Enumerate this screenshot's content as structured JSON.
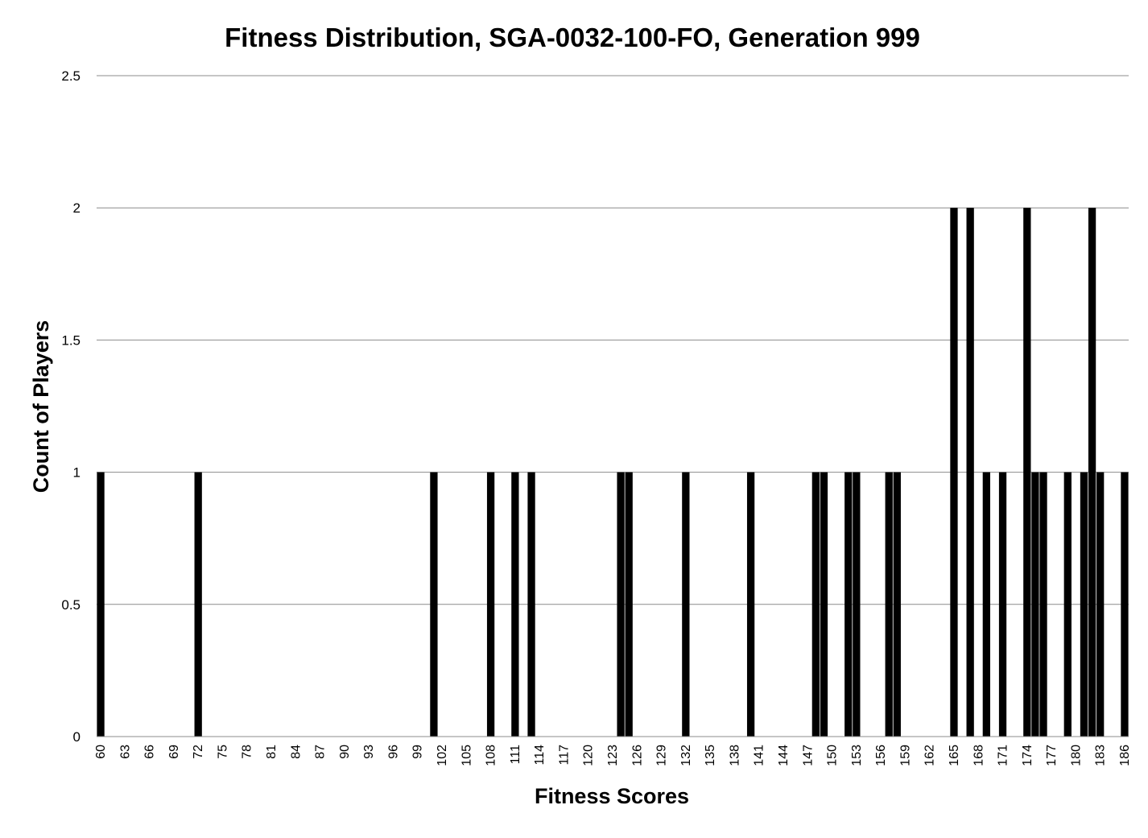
{
  "chart_data": {
    "type": "bar",
    "title": "Fitness Distribution, SGA-0032-100-FO, Generation 999",
    "xlabel": "Fitness Scores",
    "ylabel": "Count of Players",
    "ylim": [
      0,
      2.5
    ],
    "yticks": [
      "0",
      "0.5",
      "1",
      "1.5",
      "2",
      "2.5"
    ],
    "ytick_values": [
      0,
      0.5,
      1,
      1.5,
      2,
      2.5
    ],
    "grid": true,
    "legend": "none",
    "bar_color": "#000000",
    "categories": [
      60,
      61,
      62,
      63,
      64,
      65,
      66,
      67,
      68,
      69,
      70,
      71,
      72,
      73,
      74,
      75,
      76,
      77,
      78,
      79,
      80,
      81,
      82,
      83,
      84,
      85,
      86,
      87,
      88,
      89,
      90,
      91,
      92,
      93,
      94,
      95,
      96,
      97,
      98,
      99,
      100,
      101,
      102,
      103,
      104,
      105,
      106,
      107,
      108,
      109,
      110,
      111,
      112,
      113,
      114,
      115,
      116,
      117,
      118,
      119,
      120,
      121,
      122,
      123,
      124,
      125,
      126,
      127,
      128,
      129,
      130,
      131,
      132,
      133,
      134,
      135,
      136,
      137,
      138,
      139,
      140,
      141,
      142,
      143,
      144,
      145,
      146,
      147,
      148,
      149,
      150,
      151,
      152,
      153,
      154,
      155,
      156,
      157,
      158,
      159,
      160,
      161,
      162,
      163,
      164,
      165,
      166,
      167,
      168,
      169,
      170,
      171,
      172,
      173,
      174,
      175,
      176,
      177,
      178,
      179,
      180,
      181,
      182,
      183,
      184,
      185,
      186
    ],
    "values": [
      1,
      0,
      0,
      0,
      0,
      0,
      0,
      0,
      0,
      0,
      0,
      0,
      1,
      0,
      0,
      0,
      0,
      0,
      0,
      0,
      0,
      0,
      0,
      0,
      0,
      0,
      0,
      0,
      0,
      0,
      0,
      0,
      0,
      0,
      0,
      0,
      0,
      0,
      0,
      0,
      0,
      1,
      0,
      0,
      0,
      0,
      0,
      0,
      1,
      0,
      0,
      1,
      0,
      1,
      0,
      0,
      0,
      0,
      0,
      0,
      0,
      0,
      0,
      0,
      1,
      1,
      0,
      0,
      0,
      0,
      0,
      0,
      1,
      0,
      0,
      0,
      0,
      0,
      0,
      0,
      1,
      0,
      0,
      0,
      0,
      0,
      0,
      0,
      1,
      1,
      0,
      0,
      1,
      1,
      0,
      0,
      0,
      1,
      1,
      0,
      0,
      0,
      0,
      0,
      0,
      2,
      0,
      2,
      0,
      1,
      0,
      1,
      0,
      0,
      2,
      1,
      1,
      0,
      0,
      1,
      0,
      1,
      2,
      1,
      0,
      0,
      1
    ],
    "xtick_labels": [
      "60",
      "63",
      "66",
      "69",
      "72",
      "75",
      "78",
      "81",
      "84",
      "87",
      "90",
      "93",
      "96",
      "99",
      "102",
      "105",
      "108",
      "111",
      "114",
      "117",
      "120",
      "123",
      "126",
      "129",
      "132",
      "135",
      "138",
      "141",
      "144",
      "147",
      "150",
      "153",
      "156",
      "159",
      "162",
      "165",
      "168",
      "171",
      "174",
      "177",
      "180",
      "183",
      "186"
    ]
  }
}
